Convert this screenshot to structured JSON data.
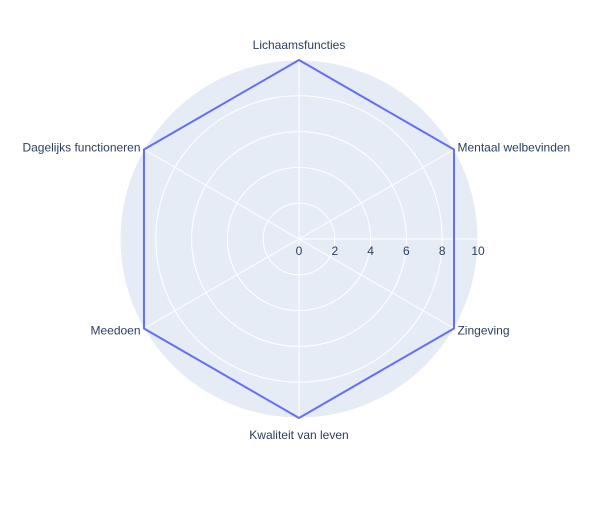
{
  "chart_data": {
    "type": "radar",
    "categories": [
      "Lichaamsfuncties",
      "Mentaal welbevinden",
      "Zingeving",
      "Kwaliteit van leven",
      "Meedoen",
      "Dagelijks functioneren"
    ],
    "series": [
      {
        "values": [
          10,
          10,
          10,
          10,
          10,
          10
        ],
        "color": "#636efa"
      }
    ],
    "radial_range": [
      0,
      10
    ],
    "radial_tick_labels": [
      "0",
      "2",
      "4",
      "6",
      "8",
      "10"
    ],
    "grid": true,
    "legend": "none",
    "background_color": "#e5ecf6",
    "grid_color": "#ffffff",
    "text_color": "#2a3f5f"
  }
}
